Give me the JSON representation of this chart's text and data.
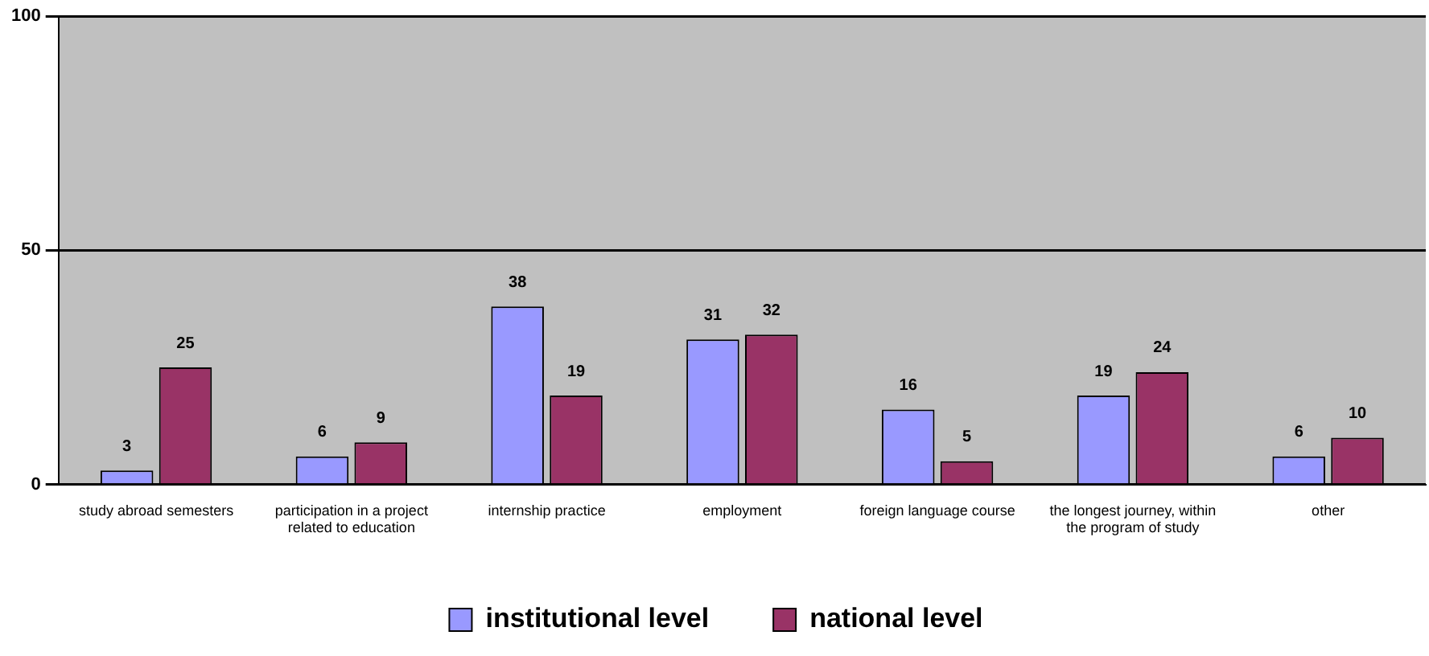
{
  "chart_data": {
    "type": "bar",
    "categories": [
      "study abroad semesters",
      "participation in a project related to education",
      "internship practice",
      "employment",
      "foreign language course",
      "the longest journey, within the program of study",
      "other"
    ],
    "series": [
      {
        "name": "institutional level",
        "color": "#9999ff",
        "values": [
          3,
          6,
          38,
          31,
          16,
          19,
          6
        ]
      },
      {
        "name": "national level",
        "color": "#993366",
        "values": [
          25,
          9,
          19,
          32,
          5,
          24,
          10
        ]
      }
    ],
    "ylim": [
      0,
      100
    ],
    "yticks": [
      0,
      50,
      100
    ],
    "grid": "y",
    "legend": "bottom",
    "data_labels": true
  }
}
